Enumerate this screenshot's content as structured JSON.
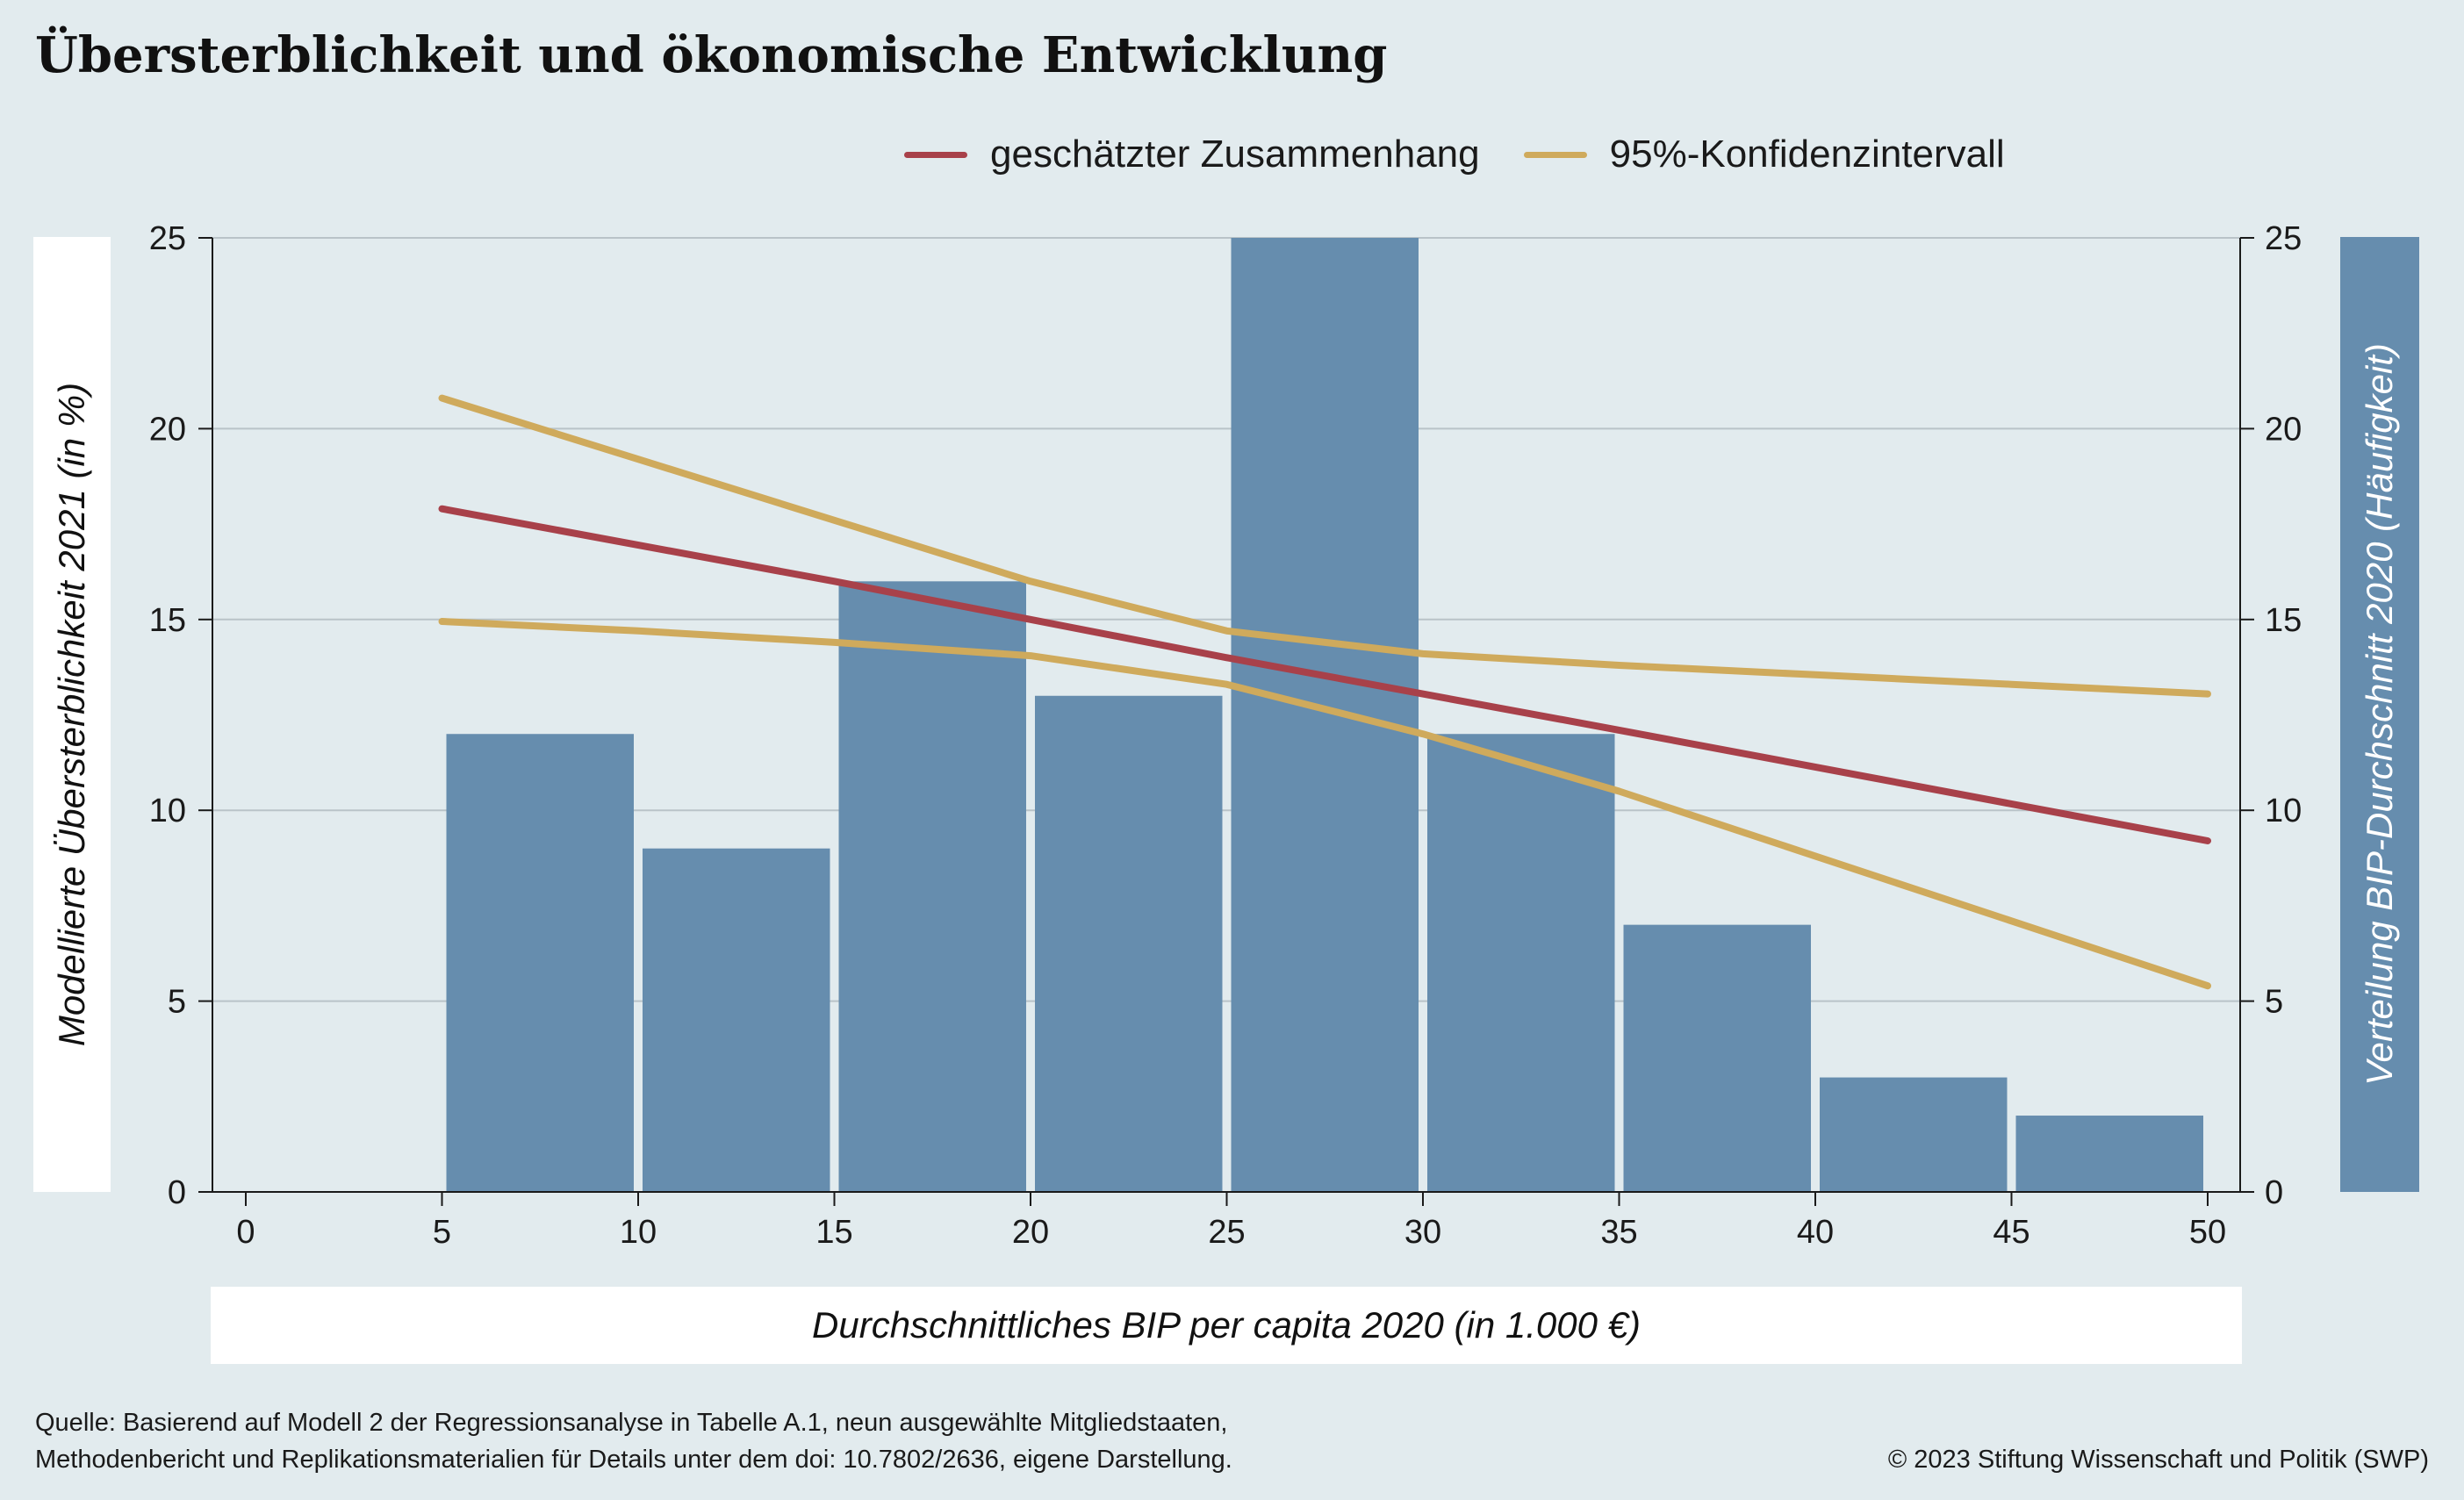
{
  "title": "Übersterblichkeit und ökonomische Entwicklung",
  "legend": [
    {
      "label": "geschätzter Zusammenhang",
      "color": "#a8414a"
    },
    {
      "label": "95%-Konfidenzintervall",
      "color": "#cfaa5c"
    }
  ],
  "left_axis_title": "Modellierte Übersterblichkeit 2021 (in %)",
  "right_axis_title": "Verteilung BIP-Durchschnitt 2020 (Häufigkeit)",
  "x_axis_title": "Durchschnittliches BIP per capita 2020 (in 1.000 €)",
  "source_line1": "Quelle: Basierend auf Modell 2 der Regressionsanalyse in Tabelle A.1, neun ausgewählte Mitgliedstaaten,",
  "source_line2": "Methodenbericht und Replikationsmaterialien für Details unter dem doi: 10.7802/2636, eigene Darstellung.",
  "copyright": "© 2023 Stiftung Wissenschaft und Politik (SWP)",
  "colors": {
    "background": "#e2ebee",
    "bar": "#668dae",
    "fit_line": "#a8414a",
    "ci_line": "#cfaa5c",
    "grid": "#b9c3c8"
  },
  "chart_data": {
    "type": "bar",
    "xlim": [
      0,
      50
    ],
    "ylim": [
      0,
      25
    ],
    "x_ticks": [
      0,
      5,
      10,
      15,
      20,
      25,
      30,
      35,
      40,
      45,
      50
    ],
    "y_ticks": [
      0,
      5,
      10,
      15,
      20,
      25
    ],
    "y_right_ticks": [
      0,
      5,
      10,
      15,
      20,
      25
    ],
    "grid": true,
    "histogram": {
      "name": "Verteilung BIP-Durchschnitt 2020 (Häufigkeit)",
      "bins": [
        [
          5,
          10
        ],
        [
          10,
          15
        ],
        [
          15,
          20
        ],
        [
          20,
          25
        ],
        [
          25,
          30
        ],
        [
          30,
          35
        ],
        [
          35,
          40
        ],
        [
          40,
          45
        ],
        [
          45,
          50
        ]
      ],
      "values": [
        12,
        9,
        16,
        13,
        25,
        12,
        7,
        3,
        2
      ]
    },
    "series": [
      {
        "name": "geschätzter Zusammenhang",
        "x": [
          5,
          15,
          25,
          35,
          50
        ],
        "y": [
          17.9,
          16.0,
          14.0,
          12.1,
          9.2
        ]
      },
      {
        "name": "95%-Konfidenzintervall",
        "x": [
          5,
          10,
          15,
          20,
          25,
          30,
          35,
          40,
          45,
          50
        ],
        "y": [
          20.8,
          19.2,
          17.6,
          16.0,
          14.7,
          14.1,
          13.8,
          13.55,
          13.3,
          13.05
        ]
      },
      {
        "name": "95%-Konfidenzintervall",
        "x": [
          5,
          10,
          15,
          20,
          25,
          30,
          35,
          40,
          45,
          50
        ],
        "y": [
          14.95,
          14.7,
          14.4,
          14.05,
          13.3,
          12.0,
          10.5,
          8.8,
          7.1,
          5.4
        ]
      }
    ]
  }
}
